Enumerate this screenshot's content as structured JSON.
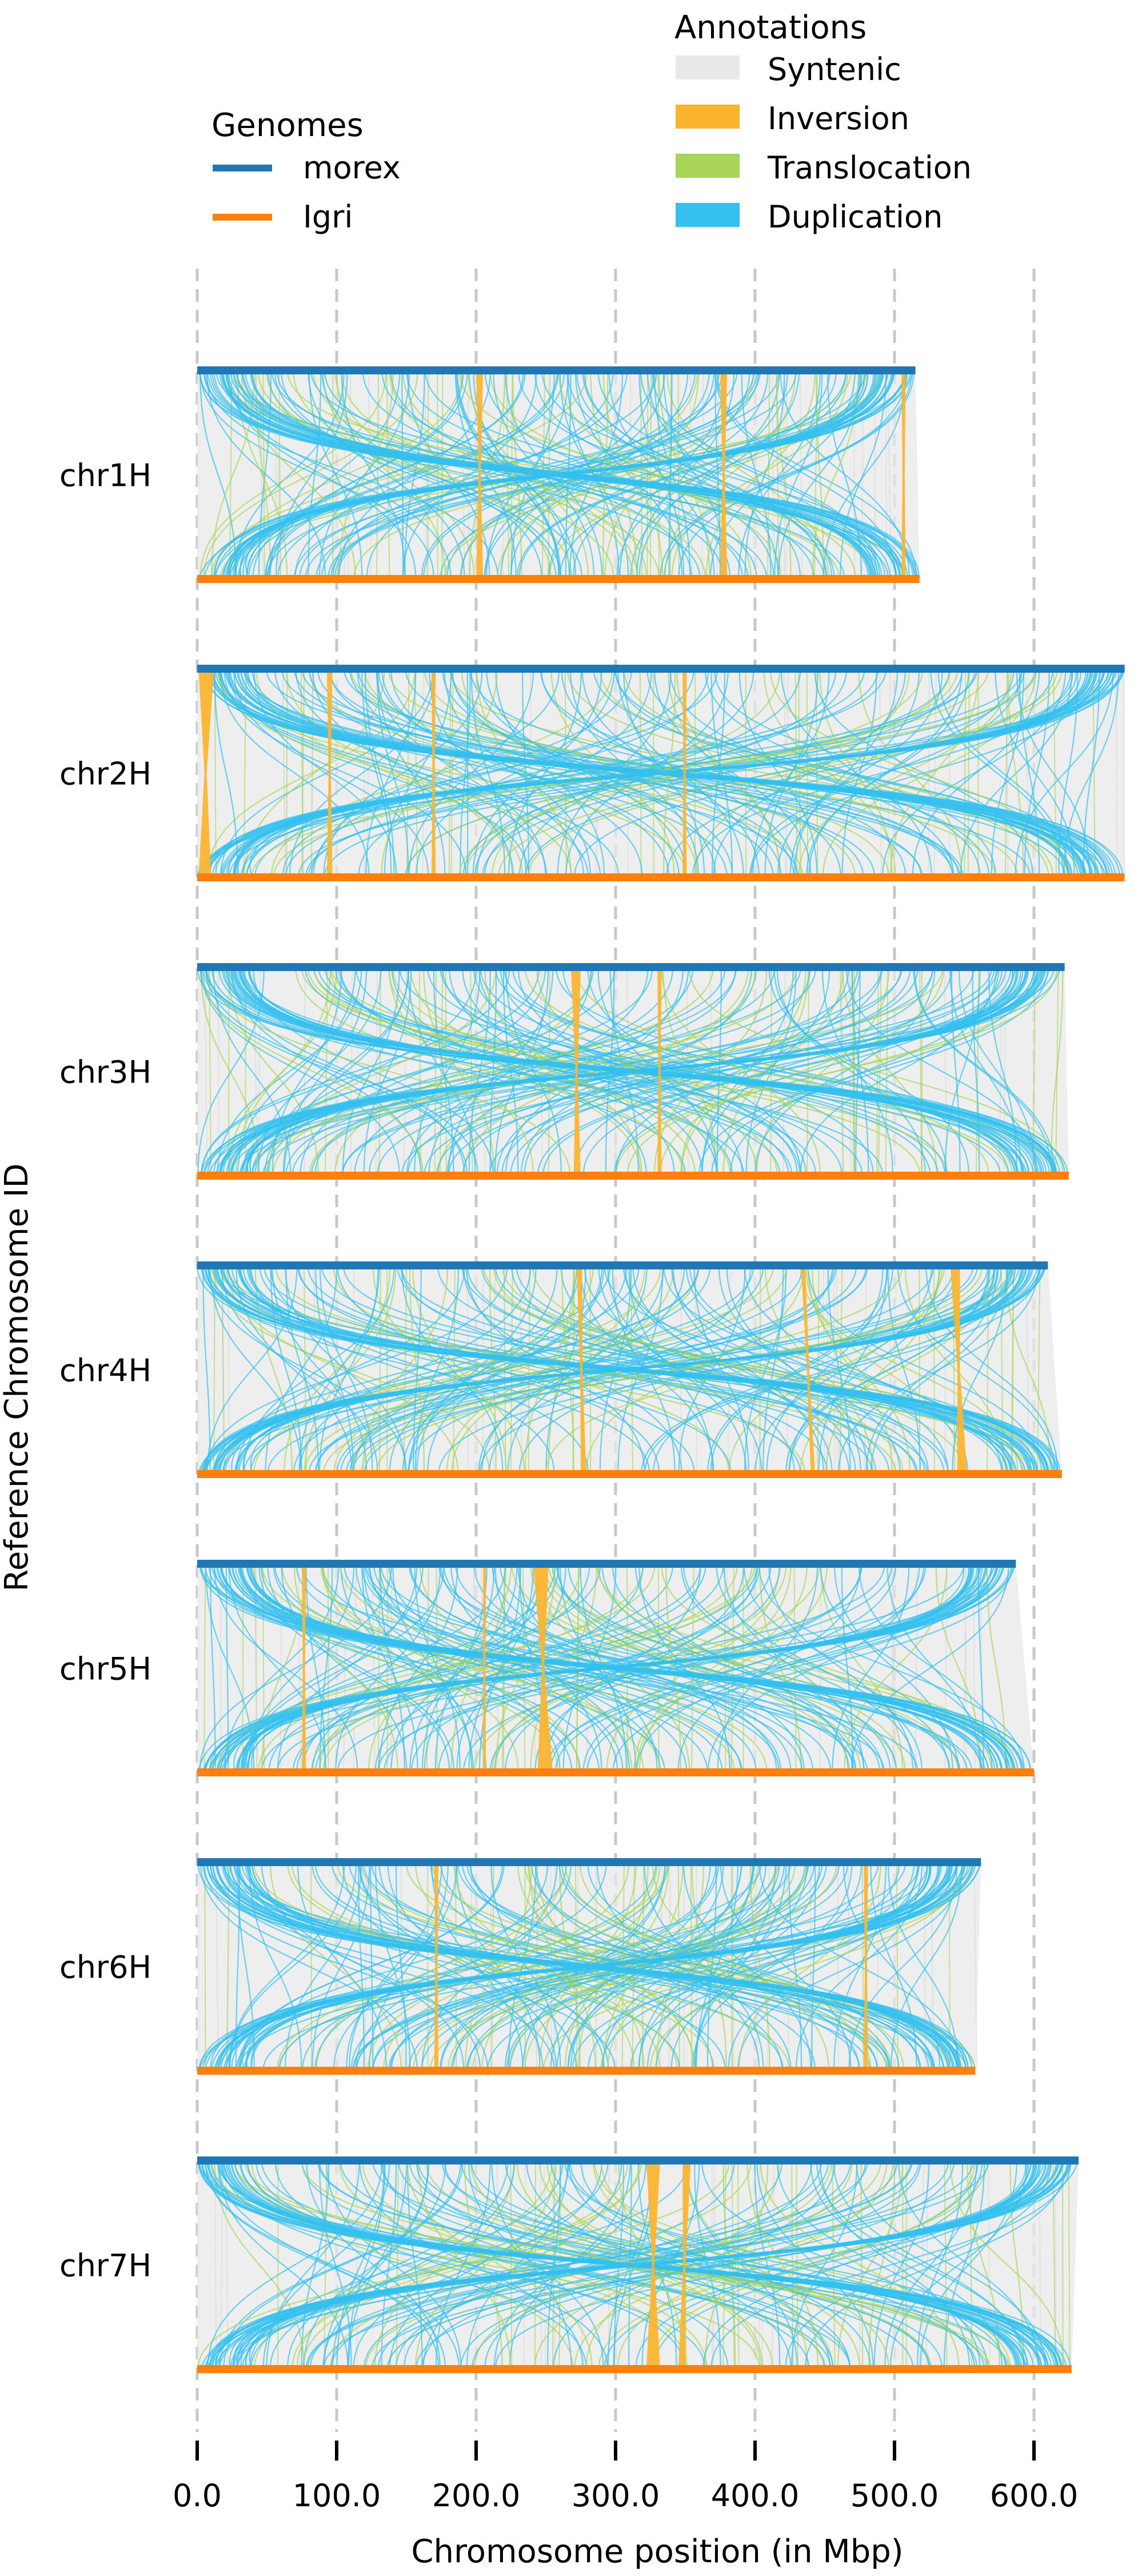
{
  "chart_data": {
    "type": "synteny",
    "title": "",
    "xlabel": "Chromosome position (in Mbp)",
    "ylabel": "Reference Chromosome ID",
    "xlim": [
      0,
      665
    ],
    "xticks": [
      0,
      100,
      200,
      300,
      400,
      500,
      600
    ],
    "xtick_labels": [
      "0.0",
      "100.0",
      "200.0",
      "300.0",
      "400.0",
      "500.0",
      "600.0"
    ],
    "grid": "vertical dashed at x ticks",
    "legend_genomes": {
      "title": "Genomes",
      "entries": [
        {
          "label": "morex",
          "color": "#1f77b4"
        },
        {
          "label": "Igri",
          "color": "#ff7f0e"
        }
      ]
    },
    "legend_annotations": {
      "title": "Annotations",
      "entries": [
        {
          "label": "Syntenic",
          "color": "#e8e8e8"
        },
        {
          "label": "Inversion",
          "color": "#fbb430"
        },
        {
          "label": "Translocation",
          "color": "#a8d458"
        },
        {
          "label": "Duplication",
          "color": "#35c0f0"
        }
      ]
    },
    "chromosomes": [
      {
        "id": "chr1H",
        "ref_length": 515,
        "qry_length": 518,
        "inversions": [
          [
            200,
            205,
            200,
            205
          ],
          [
            375,
            380,
            375,
            380
          ],
          [
            505,
            508,
            505,
            508
          ]
        ]
      },
      {
        "id": "chr2H",
        "ref_length": 665,
        "qry_length": 665,
        "inversions": [
          [
            1,
            12,
            1,
            10
          ],
          [
            93,
            97,
            93,
            97
          ],
          [
            168,
            171,
            168,
            171
          ],
          [
            348,
            351,
            348,
            351
          ]
        ]
      },
      {
        "id": "chr3H",
        "ref_length": 622,
        "qry_length": 625,
        "inversions": [
          [
            268,
            275,
            270,
            275
          ],
          [
            330,
            333,
            330,
            333
          ]
        ]
      },
      {
        "id": "chr4H",
        "ref_length": 610,
        "qry_length": 620,
        "inversions": [
          [
            272,
            276,
            275,
            279
          ],
          [
            433,
            436,
            440,
            443
          ],
          [
            540,
            547,
            545,
            552
          ]
        ]
      },
      {
        "id": "chr5H",
        "ref_length": 587,
        "qry_length": 600,
        "inversions": [
          [
            241,
            252,
            244,
            255
          ],
          [
            205,
            207,
            205,
            207
          ],
          [
            75,
            78,
            75,
            78
          ]
        ]
      },
      {
        "id": "chr6H",
        "ref_length": 562,
        "qry_length": 558,
        "inversions": [
          [
            170,
            173,
            170,
            173
          ],
          [
            478,
            481,
            478,
            481
          ]
        ]
      },
      {
        "id": "chr7H",
        "ref_length": 632,
        "qry_length": 627,
        "inversions": [
          [
            322,
            332,
            322,
            332
          ],
          [
            348,
            354,
            345,
            350
          ]
        ]
      }
    ]
  }
}
